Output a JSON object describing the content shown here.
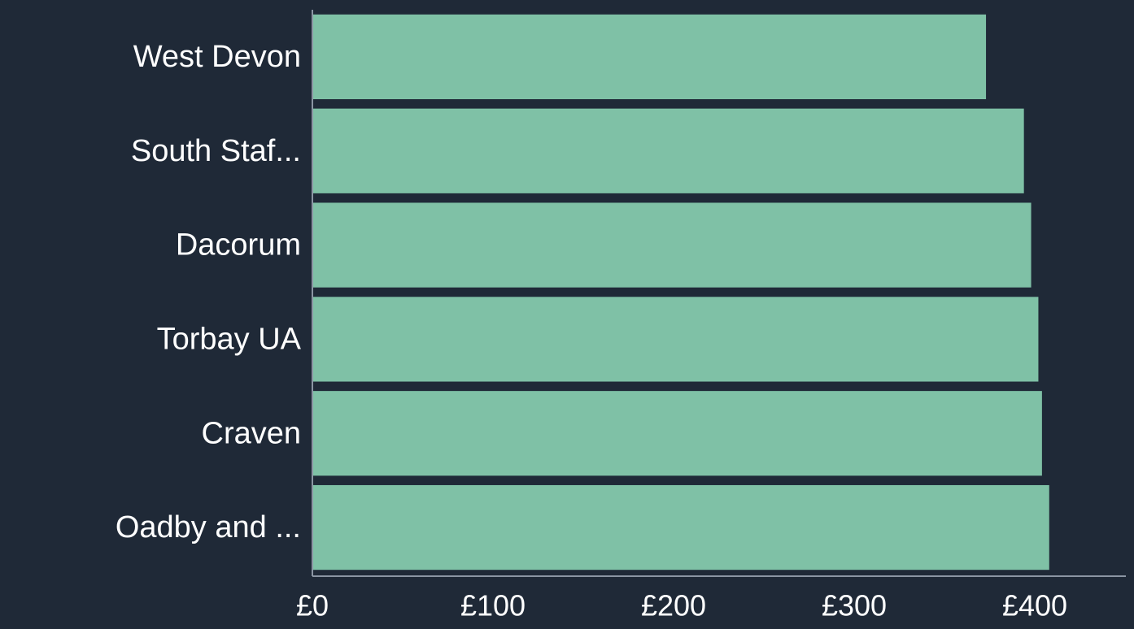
{
  "chart_data": {
    "type": "bar",
    "orientation": "horizontal",
    "title": "",
    "xlabel": "",
    "ylabel": "",
    "categories": [
      "West Devon",
      "South Staf...",
      "Dacorum",
      "Torbay UA",
      "Craven",
      "Oadby and ..."
    ],
    "values": [
      373,
      394,
      398,
      402,
      404,
      408
    ],
    "xlim": [
      0,
      450
    ],
    "xticks": [
      0,
      100,
      200,
      300,
      400
    ],
    "xtick_labels": [
      "£0",
      "£100",
      "£200",
      "£300",
      "£400"
    ],
    "bar_color": "#7fc1a6",
    "background_color": "#1f2937",
    "grid": false,
    "legend": "none"
  }
}
